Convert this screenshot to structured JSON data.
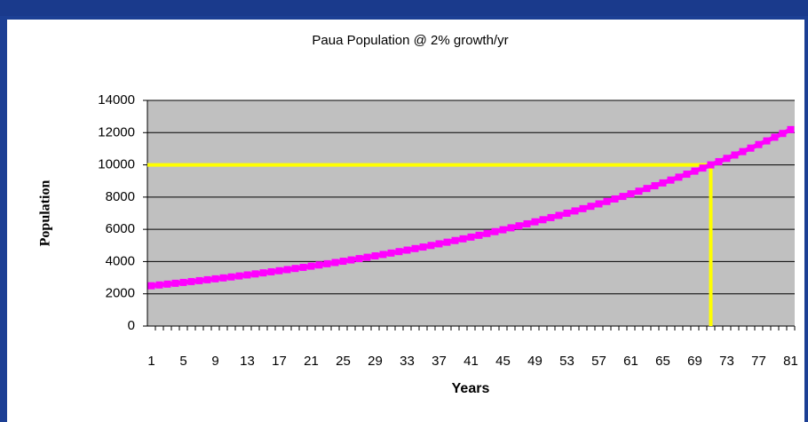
{
  "chart_data": {
    "type": "line",
    "title": "Paua Population @ 2% growth/yr",
    "x_label": "Years",
    "y_label": "Population",
    "categories": [
      1,
      null,
      null,
      null,
      5,
      null,
      null,
      null,
      9,
      null,
      null,
      null,
      13,
      null,
      null,
      null,
      17,
      null,
      null,
      null,
      21,
      null,
      null,
      null,
      25,
      null,
      null,
      null,
      29,
      null,
      null,
      null,
      33,
      null,
      null,
      null,
      37,
      null,
      null,
      null,
      41,
      null,
      null,
      null,
      45,
      null,
      null,
      null,
      49,
      null,
      null,
      null,
      53,
      null,
      null,
      null,
      57,
      null,
      null,
      null,
      61,
      null,
      null,
      null,
      65,
      null,
      null,
      null,
      69,
      null,
      null,
      null,
      73,
      null,
      null,
      null,
      77,
      null,
      null,
      null,
      81
    ],
    "series": [
      {
        "name": "Population",
        "color": "#ff00ff",
        "values": [
          2500,
          2550,
          2601,
          2653,
          2706,
          2760,
          2815,
          2872,
          2929,
          2988,
          3047,
          3108,
          3171,
          3234,
          3299,
          3365,
          3432,
          3501,
          3571,
          3642,
          3715,
          3789,
          3865,
          3942,
          4021,
          4102,
          4184,
          4267,
          4353,
          4440,
          4528,
          4619,
          4711,
          4806,
          4902,
          5000,
          5100,
          5202,
          5306,
          5412,
          5520,
          5631,
          5743,
          5858,
          5975,
          6095,
          6217,
          6341,
          6468,
          6597,
          6729,
          6864,
          7001,
          7141,
          7284,
          7429,
          7578,
          7729,
          7884,
          8042,
          8203,
          8367,
          8534,
          8705,
          8879,
          9056,
          9237,
          9422,
          9611,
          9803,
          9999,
          10199,
          10403,
          10611,
          10823,
          11040,
          11260,
          11486,
          11715,
          11950,
          12189
        ]
      }
    ],
    "ylim": [
      0,
      14000
    ],
    "yticks": [
      0,
      2000,
      4000,
      6000,
      8000,
      10000,
      12000,
      14000
    ],
    "grid": true,
    "plot_background": "#c0c0c0",
    "reference_lines": [
      {
        "axis": "y",
        "value": 10000,
        "color": "#ffff00"
      },
      {
        "axis": "x",
        "value": 71,
        "color": "#ffff00"
      }
    ]
  }
}
